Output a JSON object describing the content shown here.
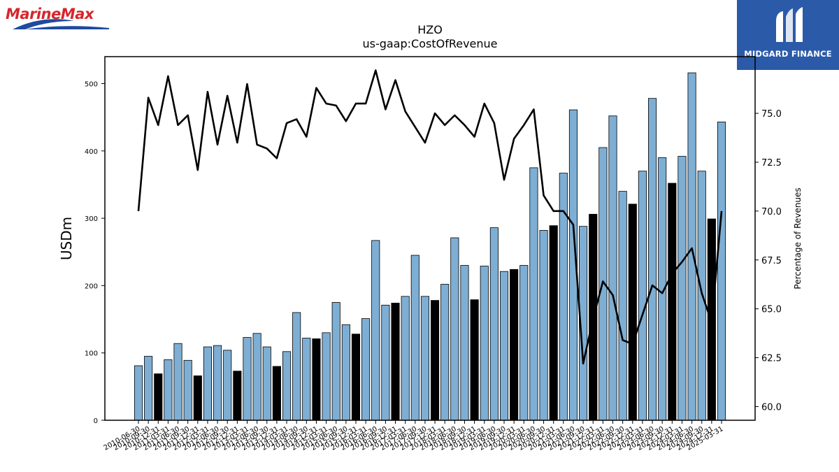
{
  "logos": {
    "left_text": "MarineMax",
    "right_text": "MIDGARD FINANCE"
  },
  "chart_data": {
    "type": "bar",
    "title": "HZO",
    "subtitle": "us-gaap:CostOfRevenue",
    "ylabel": "USDm",
    "y2label": "Percentage of Revenues",
    "ylim": [
      0,
      540
    ],
    "y2lim": [
      59.3,
      77.9
    ],
    "yticks": [
      0,
      100,
      200,
      300,
      400,
      500
    ],
    "y2ticks": [
      "60.0",
      "62.5",
      "65.0",
      "67.5",
      "70.0",
      "72.5",
      "75.0"
    ],
    "grid": false,
    "colors": {
      "quarter_bar": "#7eaed3",
      "fy_bar": "#000000",
      "line": "#000000",
      "bar_edge": "#000000"
    },
    "categories": [
      "2010-06-30",
      "2010-09-30",
      "2010-12-31",
      "2011-03-31",
      "2011-06-30",
      "2011-09-30",
      "2011-12-31",
      "2012-03-31",
      "2012-06-30",
      "2012-09-30",
      "2012-12-31",
      "2013-03-31",
      "2013-06-30",
      "2013-09-30",
      "2013-12-31",
      "2014-03-31",
      "2014-06-30",
      "2014-09-30",
      "2014-12-31",
      "2015-03-31",
      "2015-06-30",
      "2015-09-30",
      "2015-12-31",
      "2016-03-31",
      "2016-06-30",
      "2016-09-30",
      "2016-12-31",
      "2017-03-31",
      "2017-06-30",
      "2017-09-30",
      "2017-12-31",
      "2018-03-31",
      "2018-06-30",
      "2018-09-30",
      "2018-12-31",
      "2019-03-31",
      "2019-06-30",
      "2019-09-30",
      "2019-12-31",
      "2020-03-31",
      "2020-06-30",
      "2020-09-30",
      "2020-12-31",
      "2021-03-31",
      "2021-06-30",
      "2021-09-30",
      "2021-12-31",
      "2022-03-31",
      "2022-06-30",
      "2022-09-30",
      "2022-12-31",
      "2023-03-31",
      "2023-06-30",
      "2023-09-30",
      "2023-12-31",
      "2024-03-31",
      "2024-06-30",
      "2024-09-30",
      "2024-12-31",
      "2025-03-31"
    ],
    "bars": [
      {
        "name": "Cost of Revenue",
        "values": [
          81,
          95,
          69,
          90,
          114,
          89,
          66,
          109,
          111,
          104,
          73,
          123,
          129,
          109,
          80,
          102,
          160,
          122,
          121,
          130,
          175,
          142,
          128,
          151,
          267,
          171,
          174,
          184,
          245,
          184,
          178,
          202,
          271,
          230,
          179,
          229,
          286,
          221,
          224,
          230,
          375,
          282,
          289,
          367,
          461,
          288,
          306,
          405,
          452,
          340,
          321,
          370,
          478,
          390,
          352,
          392,
          516,
          370,
          299,
          443
        ]
      }
    ],
    "fy_bar_indices": [
      2,
      6,
      10,
      14,
      18,
      22,
      26,
      30,
      34,
      38,
      42,
      46,
      50,
      54,
      58
    ],
    "line": {
      "name": "Percentage of Revenues",
      "values": [
        70.0,
        75.8,
        74.4,
        76.9,
        74.4,
        74.9,
        72.1,
        76.1,
        73.4,
        75.9,
        73.5,
        76.5,
        73.4,
        73.2,
        72.7,
        74.5,
        74.7,
        73.8,
        76.3,
        75.5,
        75.4,
        74.6,
        75.5,
        75.5,
        77.2,
        75.2,
        76.7,
        75.1,
        74.3,
        73.5,
        75.0,
        74.4,
        74.9,
        74.4,
        73.8,
        75.5,
        74.5,
        71.6,
        73.7,
        74.4,
        75.2,
        70.8,
        70.0,
        70.0,
        69.3,
        62.2,
        64.5,
        66.4,
        65.7,
        63.4,
        63.2,
        64.7,
        66.2,
        65.8,
        66.8,
        67.4,
        68.1,
        65.8,
        64.3,
        70.0
      ]
    }
  }
}
